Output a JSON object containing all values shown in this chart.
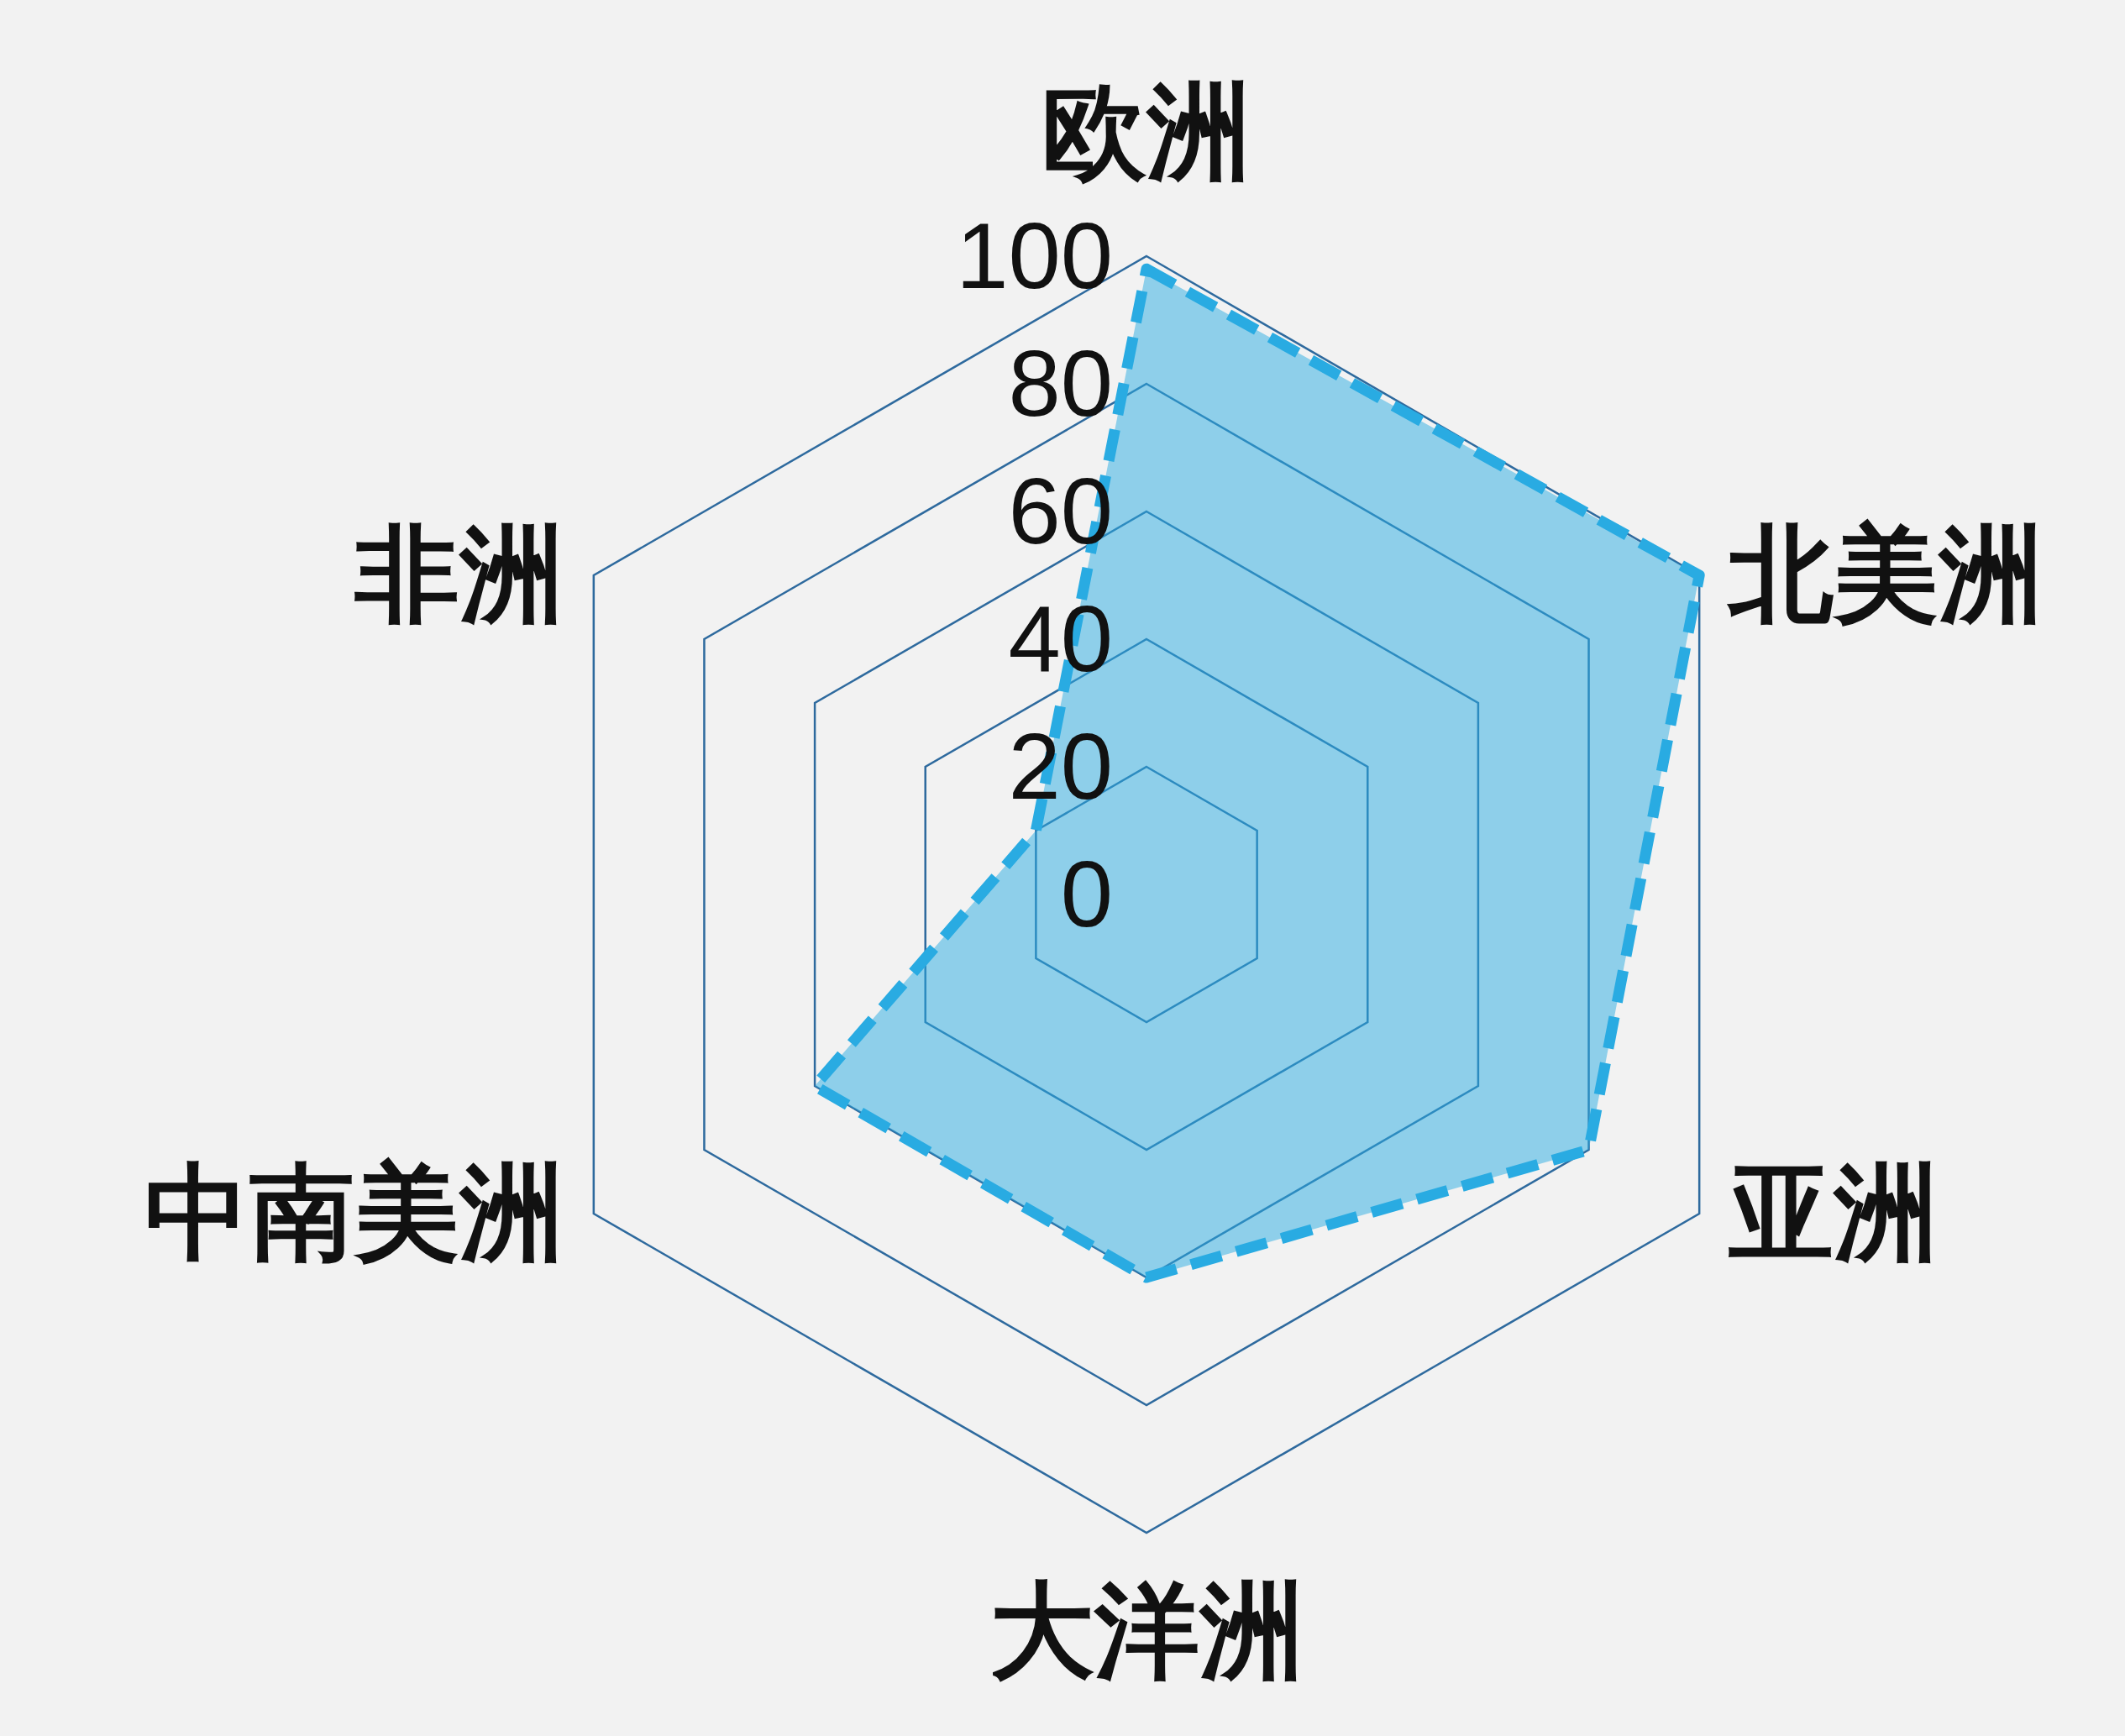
{
  "chart_data": {
    "type": "radar",
    "categories": [
      "欧洲",
      "北美洲",
      "亚洲",
      "大洋洲",
      "中南美洲",
      "非洲"
    ],
    "series": [
      {
        "color": "#29abe2",
        "values": [
          98,
          100,
          80,
          60,
          60,
          20
        ]
      }
    ],
    "ylim": [
      0,
      100
    ],
    "yticks": [
      0,
      20,
      40,
      60,
      80,
      100
    ],
    "grid": true,
    "line_style": "dashed",
    "marker": "none"
  }
}
